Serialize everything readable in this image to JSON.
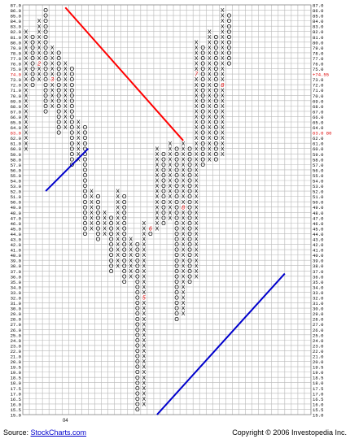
{
  "chart_data": {
    "type": "point-and-figure",
    "y_range": [
      15.0,
      87.0
    ],
    "y_ticks": [
      "87.0",
      "86.0",
      "85.0",
      "84.0",
      "83.0",
      "82.0",
      "81.0",
      "80.0",
      "79.0",
      "78.0",
      "77.0",
      "76.0",
      "75.0",
      "74.0",
      "73.0",
      "72.0",
      "71.0",
      "70.0",
      "69.0",
      "68.0",
      "67.0",
      "66.0",
      "65.0",
      "64.0",
      "63.0",
      "62.0",
      "61.0",
      "60.0",
      "59.0",
      "58.0",
      "57.0",
      "56.0",
      "55.0",
      "54.0",
      "53.0",
      "52.0",
      "51.0",
      "50.0",
      "49.0",
      "48.0",
      "47.0",
      "46.0",
      "45.0",
      "44.0",
      "43.0",
      "42.0",
      "41.0",
      "40.0",
      "39.0",
      "38.0",
      "37.0",
      "36.0",
      "35.0",
      "34.0",
      "33.0",
      "32.0",
      "31.0",
      "30.0",
      "29.0",
      "28.0",
      "27.0",
      "26.0",
      "25.0",
      "24.0",
      "23.0",
      "22.0",
      "21.0",
      "20.0",
      "19.5",
      "19.0",
      "18.5",
      "18.0",
      "17.5",
      "17.0",
      "16.5",
      "16.0",
      "15.5",
      "15.0"
    ],
    "x_labels": [
      {
        "col": 6,
        "text": "04"
      }
    ],
    "columns": [
      {
        "type": "X",
        "from": 60.0,
        "to": 82.0
      },
      {
        "type": "O",
        "from": 72.0,
        "to": 81.0
      },
      {
        "type": "X",
        "from": 73.0,
        "to": 84.0
      },
      {
        "type": "O",
        "from": 67.0,
        "to": 86.0
      },
      {
        "type": "X",
        "from": 68.0,
        "to": 79.0
      },
      {
        "type": "O",
        "from": 63.0,
        "to": 78.0
      },
      {
        "type": "X",
        "from": 64.0,
        "to": 76.0
      },
      {
        "type": "O",
        "from": 57.0,
        "to": 75.0
      },
      {
        "type": "X",
        "from": 58.0,
        "to": 65.0
      },
      {
        "type": "O",
        "from": 44.0,
        "to": 64.0
      },
      {
        "type": "X",
        "from": 45.0,
        "to": 52.0
      },
      {
        "type": "O",
        "from": 43.0,
        "to": 51.0
      },
      {
        "type": "X",
        "from": 44.0,
        "to": 48.0
      },
      {
        "type": "O",
        "from": 37.0,
        "to": 47.0
      },
      {
        "type": "X",
        "from": 38.0,
        "to": 52.0
      },
      {
        "type": "O",
        "from": 35.0,
        "to": 51.0
      },
      {
        "type": "X",
        "from": 36.0,
        "to": 43.0
      },
      {
        "type": "O",
        "from": 15.5,
        "to": 42.0
      },
      {
        "type": "X",
        "from": 16.0,
        "to": 46.0
      },
      {
        "type": "O",
        "from": 44.0,
        "to": 45.0
      },
      {
        "type": "X",
        "from": 45.0,
        "to": 60.0
      },
      {
        "type": "O",
        "from": 46.0,
        "to": 59.0
      },
      {
        "type": "X",
        "from": 47.0,
        "to": 61.0
      },
      {
        "type": "O",
        "from": 28.0,
        "to": 60.0
      },
      {
        "type": "X",
        "from": 29.0,
        "to": 61.0
      },
      {
        "type": "O",
        "from": 35.0,
        "to": 60.0
      },
      {
        "type": "X",
        "from": 36.0,
        "to": 80.0
      },
      {
        "type": "O",
        "from": 57.0,
        "to": 79.0
      },
      {
        "type": "X",
        "from": 58.0,
        "to": 82.0
      },
      {
        "type": "O",
        "from": 58.0,
        "to": 81.0
      },
      {
        "type": "X",
        "from": 59.0,
        "to": 86.0
      },
      {
        "type": "O",
        "from": 76.0,
        "to": 85.0
      }
    ],
    "left_markers": [
      {
        "price": 74.0,
        "text": "74.0",
        "color": "#dd0000"
      },
      {
        "price": 63.0,
        "text": "63.0",
        "color": "#dd0000"
      }
    ],
    "right_markers": [
      {
        "price": 74.0,
        "text": "+74.55",
        "color": "#dd0000"
      },
      {
        "price": 63.0,
        "text": "63.0 80",
        "color": "#dd0000"
      }
    ],
    "month_markers": [
      {
        "col": 2,
        "price": 76.0,
        "text": "2"
      },
      {
        "col": 4,
        "price": 73.0,
        "text": "3"
      },
      {
        "col": 18,
        "price": 32.0,
        "text": "5"
      },
      {
        "col": 19,
        "price": 45.0,
        "text": "6"
      },
      {
        "col": 26,
        "price": 74.0,
        "text": "7"
      },
      {
        "col": 30,
        "price": 72.0,
        "text": "8"
      },
      {
        "col": 24,
        "price": 49.0,
        "text": "8"
      },
      {
        "col": 32,
        "price": 59.0,
        "text": "9"
      },
      {
        "col": 38,
        "price": 84.0,
        "text": "C"
      }
    ],
    "trendlines": [
      {
        "color": "#ff0000",
        "from": {
          "col": 6.0,
          "price": 86.5
        },
        "to": {
          "col": 24.0,
          "price": 61.5
        }
      },
      {
        "color": "#0000cc",
        "from": {
          "col": 3.0,
          "price": 52.0
        },
        "to": {
          "col": 9.5,
          "price": 60.0
        }
      },
      {
        "color": "#0000cc",
        "from": {
          "col": 20.0,
          "price": 15.0
        },
        "to": {
          "col": 39.5,
          "price": 36.5
        }
      }
    ],
    "colors": {
      "grid": "#b8b8b8",
      "x_mark": "#000000",
      "o_mark": "#000000",
      "marker_red": "#dd0000"
    }
  },
  "footer": {
    "source_prefix": "Source: ",
    "source_link": "StockCharts.com",
    "copyright": "Copyright © 2006 Investopedia Inc."
  }
}
